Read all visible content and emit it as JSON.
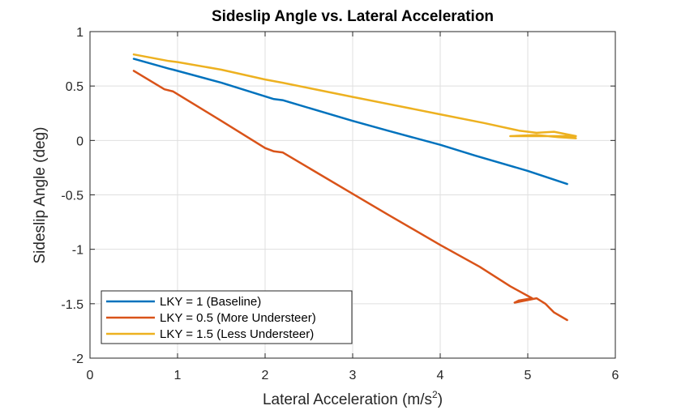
{
  "chart_data": {
    "type": "line",
    "title": "Sideslip Angle vs. Lateral Acceleration",
    "xlabel": "Lateral Acceleration (m/s",
    "xlabel_superscript": "2",
    "xlabel_suffix": ")",
    "ylabel": "Sideslip Angle (deg)",
    "xlim": [
      0,
      6
    ],
    "ylim": [
      -2,
      1
    ],
    "xticks": [
      0,
      1,
      2,
      3,
      4,
      5,
      6
    ],
    "xtick_labels": [
      "0",
      "1",
      "2",
      "3",
      "4",
      "5",
      "6"
    ],
    "yticks": [
      -2,
      -1.5,
      -1,
      -0.5,
      0,
      0.5,
      1
    ],
    "ytick_labels": [
      "-2",
      "-1.5",
      "-1",
      "-0.5",
      "0",
      "0.5",
      "1"
    ],
    "grid": true,
    "legend_position": "bottom-left",
    "series": [
      {
        "name": "LKY = 1 (Baseline)",
        "color": "#0072BD",
        "points": [
          [
            0.5,
            0.75
          ],
          [
            0.9,
            0.66
          ],
          [
            0.95,
            0.65
          ],
          [
            1.5,
            0.53
          ],
          [
            2.1,
            0.38
          ],
          [
            2.2,
            0.37
          ],
          [
            3.0,
            0.18
          ],
          [
            3.4,
            0.09
          ],
          [
            4.0,
            -0.04
          ],
          [
            4.4,
            -0.14
          ],
          [
            5.0,
            -0.28
          ],
          [
            5.45,
            -0.4
          ]
        ]
      },
      {
        "name": "LKY = 0.5 (More Understeer)",
        "color": "#D95319",
        "points": [
          [
            0.5,
            0.64
          ],
          [
            0.85,
            0.47
          ],
          [
            0.95,
            0.45
          ],
          [
            1.5,
            0.18
          ],
          [
            2.0,
            -0.07
          ],
          [
            2.1,
            -0.1
          ],
          [
            2.2,
            -0.11
          ],
          [
            3.0,
            -0.49
          ],
          [
            3.4,
            -0.68
          ],
          [
            4.0,
            -0.96
          ],
          [
            4.45,
            -1.16
          ],
          [
            4.8,
            -1.34
          ],
          [
            5.05,
            -1.45
          ],
          [
            4.9,
            -1.47
          ],
          [
            4.85,
            -1.49
          ],
          [
            5.1,
            -1.45
          ],
          [
            5.2,
            -1.5
          ],
          [
            5.25,
            -1.54
          ],
          [
            5.3,
            -1.58
          ],
          [
            5.45,
            -1.65
          ]
        ]
      },
      {
        "name": "LKY = 1.5 (Less Understeer)",
        "color": "#EDB120",
        "points": [
          [
            0.5,
            0.79
          ],
          [
            0.9,
            0.73
          ],
          [
            1.0,
            0.72
          ],
          [
            1.5,
            0.65
          ],
          [
            2.0,
            0.56
          ],
          [
            2.2,
            0.53
          ],
          [
            3.0,
            0.4
          ],
          [
            4.0,
            0.24
          ],
          [
            4.5,
            0.16
          ],
          [
            4.9,
            0.09
          ],
          [
            5.1,
            0.07
          ],
          [
            5.3,
            0.08
          ],
          [
            5.55,
            0.04
          ],
          [
            4.8,
            0.04
          ],
          [
            5.1,
            0.05
          ],
          [
            5.35,
            0.03
          ],
          [
            5.55,
            0.02
          ]
        ]
      }
    ]
  }
}
